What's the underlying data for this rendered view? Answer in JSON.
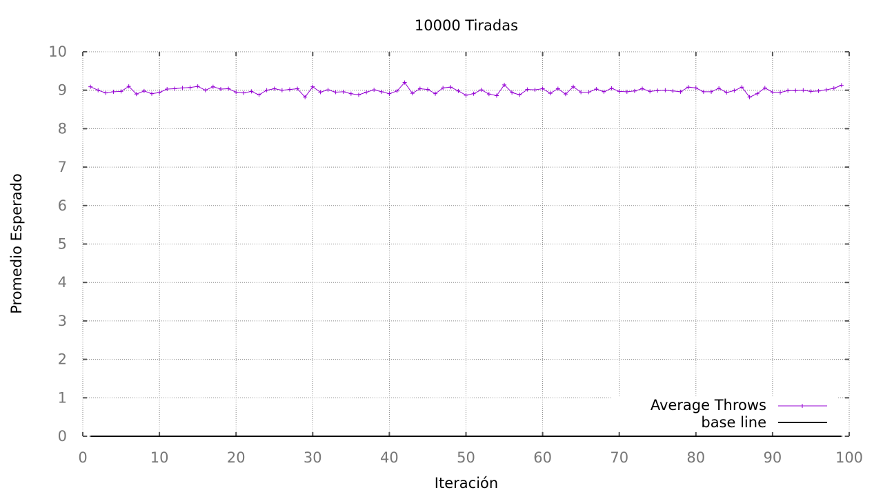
{
  "chart_data": {
    "type": "line",
    "title": "10000 Tiradas",
    "xlabel": "Iteración",
    "ylabel": "Promedio Esperado",
    "xlim": [
      0,
      100
    ],
    "ylim": [
      0,
      10
    ],
    "x_ticks": [
      "0",
      "10",
      "20",
      "30",
      "40",
      "50",
      "60",
      "70",
      "80",
      "90",
      "100"
    ],
    "y_ticks": [
      "0",
      "1",
      "2",
      "3",
      "4",
      "5",
      "6",
      "7",
      "8",
      "9",
      "10"
    ],
    "grid": true,
    "legend_position": "bottom-right",
    "series": [
      {
        "name": "Average Throws",
        "color": "#9400d3",
        "marker": "plus",
        "x": [
          1,
          2,
          3,
          4,
          5,
          6,
          7,
          8,
          9,
          10,
          11,
          12,
          13,
          14,
          15,
          16,
          17,
          18,
          19,
          20,
          21,
          22,
          23,
          24,
          25,
          26,
          27,
          28,
          29,
          30,
          31,
          32,
          33,
          34,
          35,
          36,
          37,
          38,
          39,
          40,
          41,
          42,
          43,
          44,
          45,
          46,
          47,
          48,
          49,
          50,
          51,
          52,
          53,
          54,
          55,
          56,
          57,
          58,
          59,
          60,
          61,
          62,
          63,
          64,
          65,
          66,
          67,
          68,
          69,
          70,
          71,
          72,
          73,
          74,
          75,
          76,
          77,
          78,
          79,
          80,
          81,
          82,
          83,
          84,
          85,
          86,
          87,
          88,
          89,
          90,
          91,
          92,
          93,
          94,
          95,
          96,
          97,
          98,
          99
        ],
        "y": [
          9.09,
          9.0,
          8.93,
          8.96,
          8.97,
          9.1,
          8.9,
          8.98,
          8.91,
          8.94,
          9.03,
          9.04,
          9.06,
          9.07,
          9.1,
          9.0,
          9.09,
          9.03,
          9.04,
          8.95,
          8.93,
          8.97,
          8.88,
          9.0,
          9.04,
          9.0,
          9.02,
          9.04,
          8.82,
          9.09,
          8.95,
          9.01,
          8.95,
          8.96,
          8.91,
          8.88,
          8.95,
          9.01,
          8.96,
          8.91,
          8.98,
          9.2,
          8.92,
          9.04,
          9.02,
          8.91,
          9.06,
          9.08,
          8.98,
          8.87,
          8.91,
          9.01,
          8.9,
          8.86,
          9.14,
          8.94,
          8.88,
          9.02,
          9.01,
          9.04,
          8.92,
          9.04,
          8.9,
          9.09,
          8.95,
          8.95,
          9.03,
          8.96,
          9.05,
          8.97,
          8.96,
          8.98,
          9.04,
          8.97,
          8.99,
          9.0,
          8.98,
          8.96,
          9.08,
          9.06,
          8.96,
          8.96,
          9.05,
          8.94,
          8.99,
          9.08,
          8.82,
          8.91,
          9.06,
          8.95,
          8.94,
          8.99,
          8.99,
          9.0,
          8.97,
          8.98,
          9.01,
          9.05,
          9.13
        ]
      },
      {
        "name": "base line",
        "color": "#000000",
        "marker": "none",
        "x": [
          1,
          99
        ],
        "y": [
          0,
          0
        ]
      }
    ]
  }
}
